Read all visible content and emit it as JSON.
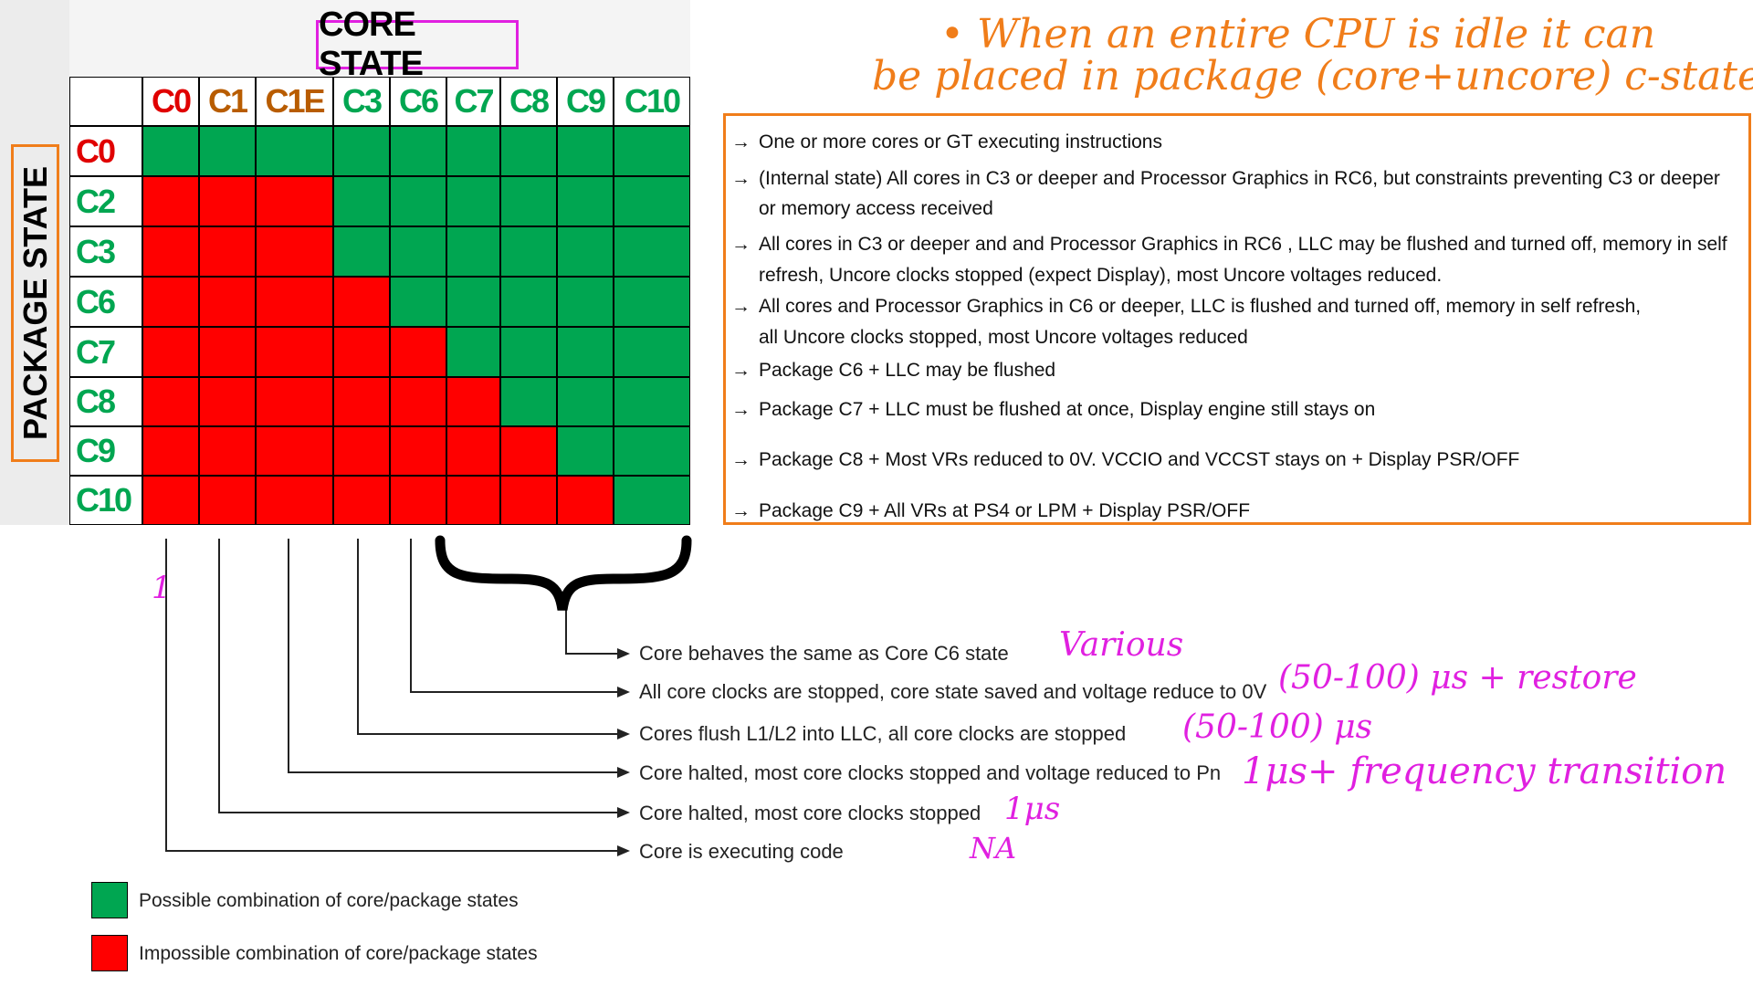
{
  "core_state_title": "CORE STATE",
  "package_state_title": "PACKAGE STATE",
  "core_states": [
    "C0",
    "C1",
    "C1E",
    "C3",
    "C6",
    "C7",
    "C8",
    "C9",
    "C10"
  ],
  "package_states": [
    "C0",
    "C2",
    "C3",
    "C6",
    "C7",
    "C8",
    "C9",
    "C10"
  ],
  "colors": {
    "possible": "#00a651",
    "impossible": "#ff0000",
    "c0_label": "#e00000",
    "c1_label": "#b85c00",
    "green_label": "#00a651",
    "orange_accent": "#f07d1a",
    "magenta_accent": "#e020e0"
  },
  "matrix_possible": [
    [
      1,
      1,
      1,
      1,
      1,
      1,
      1,
      1,
      1
    ],
    [
      0,
      0,
      0,
      1,
      1,
      1,
      1,
      1,
      1
    ],
    [
      0,
      0,
      0,
      1,
      1,
      1,
      1,
      1,
      1
    ],
    [
      0,
      0,
      0,
      0,
      1,
      1,
      1,
      1,
      1
    ],
    [
      0,
      0,
      0,
      0,
      0,
      1,
      1,
      1,
      1
    ],
    [
      0,
      0,
      0,
      0,
      0,
      0,
      1,
      1,
      1
    ],
    [
      0,
      0,
      0,
      0,
      0,
      0,
      0,
      1,
      1
    ],
    [
      0,
      0,
      0,
      0,
      0,
      0,
      0,
      0,
      1
    ]
  ],
  "package_descriptions": [
    "One or more cores or GT executing instructions",
    "(Internal state) All cores in C3 or deeper and Processor Graphics  in RC6, but constraints  preventing C3 or deeper",
    "or memory access received",
    "All cores in C3 or deeper and and Processor Graphics in RC6 , LLC may be flushed and turned off, memory in self",
    "refresh, Uncore clocks stopped (expect Display), most Uncore voltages reduced.",
    "All cores and Processor Graphics  in C6 or deeper, LLC is flushed and turned off, memory in self refresh,",
    "all Uncore clocks stopped, most Uncore voltages reduced",
    "Package C6 + LLC may be flushed",
    "Package C7 + LLC must be flushed at once, Display engine still stays on",
    "Package C8 + Most VRs reduced to 0V. VCCIO and VCCST stays on + Display PSR/OFF",
    "Package C9 + All VRs at PS4 or LPM + Display PSR/OFF"
  ],
  "core_notes": [
    "Core behaves the same as Core C6 state",
    "All core clocks are stopped, core state saved and voltage reduce to 0V",
    "Cores flush L1/L2 into LLC, all core clocks are stopped",
    "Core halted, most core clocks stopped and voltage reduced to Pn",
    "Core halted, most core clocks stopped",
    "Core is executing code"
  ],
  "handwritten_orange": [
    "• When an entire CPU is idle it can",
    "be placed in package (core+uncore) c-state"
  ],
  "handwritten_magenta": {
    "mark": "1",
    "various": "Various",
    "c6_latency": "(50-100) μs + restore",
    "c3_latency": "(50-100) μs",
    "c1e_latency": "1μs+ frequency transition",
    "c1_latency": "1μs",
    "c0_latency": "NA"
  },
  "legend": {
    "possible": "Possible combination of core/package states",
    "impossible": "Impossible combination of core/package states"
  }
}
